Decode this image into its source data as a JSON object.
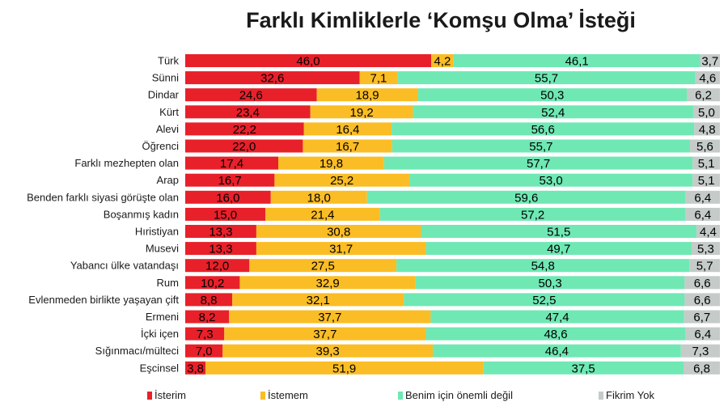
{
  "chart_data": {
    "type": "bar",
    "orientation": "horizontal",
    "stacked": true,
    "title": "Farklı Kimliklerle ‘Komşu Olma’ İsteği",
    "categories": [
      "Türk",
      "Sünni",
      "Dindar",
      "Kürt",
      "Alevi",
      "Öğrenci",
      "Farklı mezhepten olan",
      "Arap",
      "Benden farklı siyasi görüşte olan",
      "Boşanmış kadın",
      "Hıristiyan",
      "Musevi",
      "Yabancı ülke vatandaşı",
      "Rum",
      "Evlenmeden birlikte yaşayan çift",
      "Ermeni",
      "İçki içen",
      "Sığınmacı/mülteci",
      "Eşcinsel"
    ],
    "series": [
      {
        "name": "İsterim",
        "color": "#e8202a",
        "values": [
          46.0,
          32.6,
          24.6,
          23.4,
          22.2,
          22.0,
          17.4,
          16.7,
          16.0,
          15.0,
          13.3,
          13.3,
          12.0,
          10.2,
          8.8,
          8.2,
          7.3,
          7.0,
          3.8
        ],
        "labels": [
          "46,0",
          "32,6",
          "24,6",
          "23,4",
          "22,2",
          "22,0",
          "17,4",
          "16,7",
          "16,0",
          "15,0",
          "13,3",
          "13,3",
          "12,0",
          "10,2",
          "8,8",
          "8,2",
          "7,3",
          "7,0",
          "3,8"
        ]
      },
      {
        "name": "İstemem",
        "color": "#fbbd25",
        "values": [
          4.2,
          7.1,
          18.9,
          19.2,
          16.4,
          16.7,
          19.8,
          25.2,
          18.0,
          21.4,
          30.8,
          31.7,
          27.5,
          32.9,
          32.1,
          37.7,
          37.7,
          39.3,
          51.9
        ],
        "labels": [
          "4,2",
          "7,1",
          "18,9",
          "19,2",
          "16,4",
          "16,7",
          "19,8",
          "25,2",
          "18,0",
          "21,4",
          "30,8",
          "31,7",
          "27,5",
          "32,9",
          "32,1",
          "37,7",
          "37,7",
          "39,3",
          "51,9"
        ]
      },
      {
        "name": "Benim için önemli değil",
        "color": "#6fe8b4",
        "values": [
          46.1,
          55.7,
          50.3,
          52.4,
          56.6,
          55.7,
          57.7,
          53.0,
          59.6,
          57.2,
          51.5,
          49.7,
          54.8,
          50.3,
          52.5,
          47.4,
          48.6,
          46.4,
          37.5
        ],
        "labels": [
          "46,1",
          "55,7",
          "50,3",
          "52,4",
          "56,6",
          "55,7",
          "57,7",
          "53,0",
          "59,6",
          "57,2",
          "51,5",
          "49,7",
          "54,8",
          "50,3",
          "52,5",
          "47,4",
          "48,6",
          "46,4",
          "37,5"
        ]
      },
      {
        "name": "Fikrim Yok",
        "color": "#c5cbc9",
        "values": [
          3.7,
          4.6,
          6.2,
          5.0,
          4.8,
          5.6,
          5.1,
          5.1,
          6.4,
          6.4,
          4.4,
          5.3,
          5.7,
          6.6,
          6.6,
          6.7,
          6.4,
          7.3,
          6.8
        ],
        "labels": [
          "3,7",
          "4,6",
          "6,2",
          "5,0",
          "4,8",
          "5,6",
          "5,1",
          "5,1",
          "6,4",
          "6,4",
          "4,4",
          "5,3",
          "5,7",
          "6,6",
          "6,6",
          "6,7",
          "6,4",
          "7,3",
          "6,8"
        ]
      }
    ],
    "xlim": [
      0,
      100
    ],
    "grid": false,
    "legend_position": "bottom"
  }
}
